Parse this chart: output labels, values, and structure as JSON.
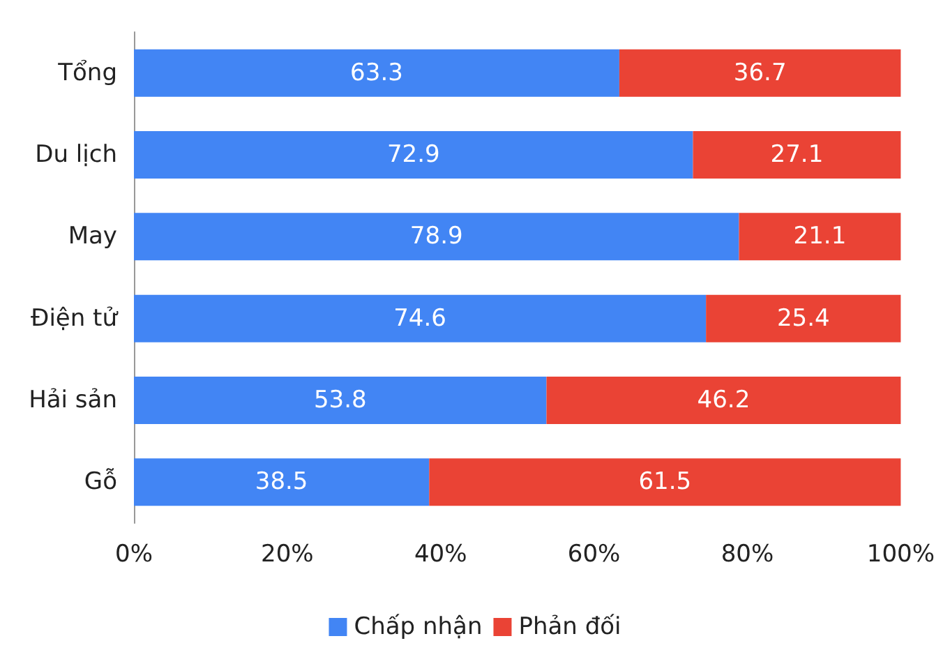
{
  "chart_data": {
    "type": "bar",
    "orientation": "horizontal",
    "stacked": true,
    "categories": [
      "Tổng",
      "Du lịch",
      "May",
      "Điện tử",
      "Hải sản",
      "Gỗ"
    ],
    "series": [
      {
        "name": "Chấp nhận",
        "color": "#4285f4",
        "values": [
          63.3,
          72.9,
          78.9,
          74.6,
          53.8,
          38.5
        ]
      },
      {
        "name": "Phản đối",
        "color": "#ea4335",
        "values": [
          36.7,
          27.1,
          21.1,
          25.4,
          46.2,
          61.5
        ]
      }
    ],
    "xlim": [
      0,
      100
    ],
    "xticks": [
      {
        "value": 0,
        "label": "0%"
      },
      {
        "value": 20,
        "label": "20%"
      },
      {
        "value": 40,
        "label": "40%"
      },
      {
        "value": 60,
        "label": "60%"
      },
      {
        "value": 80,
        "label": "80%"
      },
      {
        "value": 100,
        "label": "100%"
      }
    ],
    "data_labels": true,
    "grid": false,
    "legend": "bottom"
  }
}
